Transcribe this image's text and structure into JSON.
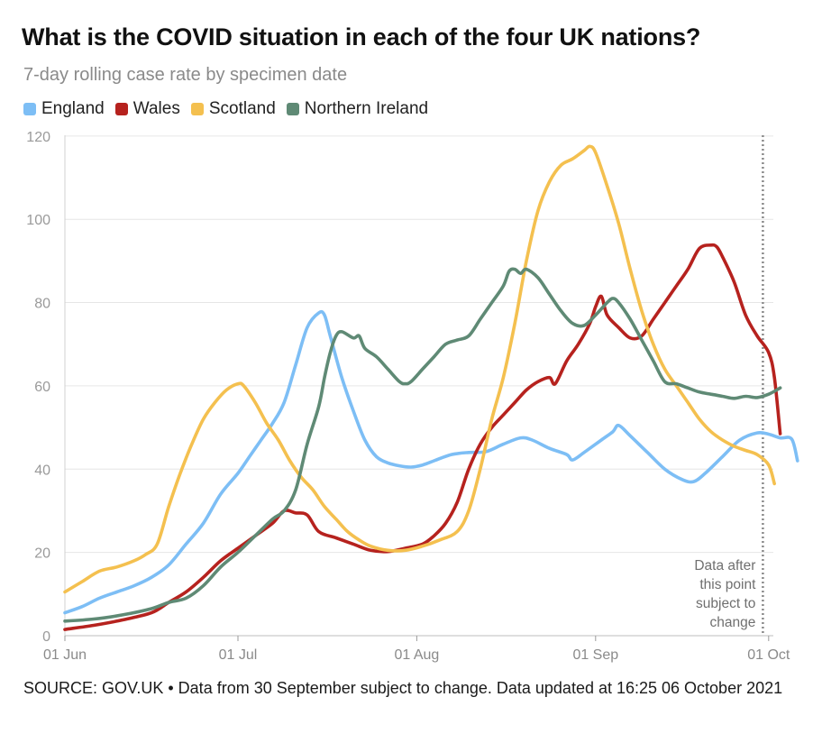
{
  "header": {
    "title": "What is the COVID situation in each of the four UK nations?",
    "subtitle": "7-day rolling case rate by specimen date"
  },
  "footer": {
    "source": "SOURCE: GOV.UK • Data from 30 September subject to change. Data updated at 16:25 06 October 2021"
  },
  "annotation": {
    "lines": [
      "Data after",
      "this point",
      "subject to",
      "change"
    ],
    "day": 121
  },
  "chart_data": {
    "type": "line",
    "title": "What is the COVID situation in each of the four UK nations?",
    "subtitle": "7-day rolling case rate by specimen date",
    "xlabel": "",
    "ylabel": "",
    "ylim": [
      0,
      120
    ],
    "xlim_days": [
      0,
      124
    ],
    "legend_position": "top-left",
    "grid": true,
    "y_ticks": [
      0,
      20,
      40,
      60,
      80,
      100,
      120
    ],
    "x_ticks": [
      {
        "label": "01 Jun",
        "day": 0
      },
      {
        "label": "01 Jul",
        "day": 30
      },
      {
        "label": "01 Aug",
        "day": 61
      },
      {
        "label": "01 Sep",
        "day": 92
      },
      {
        "label": "01 Oct",
        "day": 122
      }
    ],
    "series": [
      {
        "name": "England",
        "color": "#7dbef5",
        "points": [
          [
            0,
            5.5
          ],
          [
            3,
            7
          ],
          [
            6,
            9
          ],
          [
            9,
            10.5
          ],
          [
            12,
            12
          ],
          [
            15,
            14
          ],
          [
            18,
            17
          ],
          [
            21,
            22
          ],
          [
            24,
            27
          ],
          [
            27,
            34
          ],
          [
            30,
            39
          ],
          [
            32,
            43
          ],
          [
            34,
            47
          ],
          [
            36,
            51
          ],
          [
            38,
            56
          ],
          [
            40,
            65
          ],
          [
            42,
            74
          ],
          [
            44,
            77.5
          ],
          [
            45,
            77
          ],
          [
            46,
            72
          ],
          [
            48,
            62
          ],
          [
            50,
            54
          ],
          [
            52,
            47
          ],
          [
            54,
            43
          ],
          [
            56,
            41.5
          ],
          [
            58,
            40.8
          ],
          [
            60,
            40.5
          ],
          [
            62,
            41
          ],
          [
            64,
            42
          ],
          [
            67,
            43.5
          ],
          [
            70,
            44
          ],
          [
            73,
            44.2
          ],
          [
            76,
            46
          ],
          [
            79,
            47.5
          ],
          [
            81,
            47
          ],
          [
            84,
            45
          ],
          [
            87,
            43.5
          ],
          [
            88,
            42.2
          ],
          [
            90,
            44
          ],
          [
            93,
            47
          ],
          [
            95,
            49
          ],
          [
            96,
            50.5
          ],
          [
            98,
            48
          ],
          [
            101,
            44
          ],
          [
            104,
            40
          ],
          [
            107,
            37.5
          ],
          [
            109,
            37
          ],
          [
            111,
            39
          ],
          [
            114,
            43
          ],
          [
            117,
            47
          ],
          [
            120,
            48.7
          ],
          [
            122,
            48.4
          ],
          [
            124,
            47.5
          ],
          [
            126,
            47.2
          ],
          [
            127,
            42
          ]
        ]
      },
      {
        "name": "Wales",
        "color": "#b6221e",
        "points": [
          [
            0,
            1.5
          ],
          [
            5,
            2.5
          ],
          [
            10,
            3.8
          ],
          [
            15,
            5.5
          ],
          [
            18,
            8
          ],
          [
            21,
            10.5
          ],
          [
            24,
            14
          ],
          [
            27,
            18
          ],
          [
            30,
            21
          ],
          [
            33,
            24
          ],
          [
            36,
            27
          ],
          [
            38,
            30
          ],
          [
            40,
            29.5
          ],
          [
            42,
            29
          ],
          [
            44,
            25
          ],
          [
            47,
            23.5
          ],
          [
            50,
            22
          ],
          [
            53,
            20.5
          ],
          [
            56,
            20.2
          ],
          [
            59,
            21
          ],
          [
            62,
            22
          ],
          [
            64,
            24
          ],
          [
            66,
            27
          ],
          [
            68,
            32
          ],
          [
            70,
            40
          ],
          [
            72,
            46
          ],
          [
            74,
            50
          ],
          [
            76,
            53
          ],
          [
            78,
            56
          ],
          [
            80,
            59
          ],
          [
            82,
            61
          ],
          [
            84,
            62
          ],
          [
            85,
            60.5
          ],
          [
            87,
            66
          ],
          [
            89,
            70
          ],
          [
            91,
            75
          ],
          [
            92,
            79
          ],
          [
            93,
            81.5
          ],
          [
            94,
            77
          ],
          [
            96,
            74
          ],
          [
            98,
            71.5
          ],
          [
            100,
            72
          ],
          [
            102,
            76
          ],
          [
            104,
            80
          ],
          [
            106,
            84
          ],
          [
            108,
            88
          ],
          [
            110,
            93
          ],
          [
            112,
            93.8
          ],
          [
            113,
            93.4
          ],
          [
            114,
            91
          ],
          [
            116,
            85
          ],
          [
            118,
            77
          ],
          [
            120,
            72
          ],
          [
            122,
            68
          ],
          [
            123,
            62
          ],
          [
            124,
            48.5
          ]
        ]
      },
      {
        "name": "Scotland",
        "color": "#f4c04f",
        "points": [
          [
            0,
            10.5
          ],
          [
            3,
            13
          ],
          [
            6,
            15.5
          ],
          [
            9,
            16.5
          ],
          [
            12,
            18
          ],
          [
            14,
            19.5
          ],
          [
            16,
            22
          ],
          [
            18,
            31
          ],
          [
            20,
            39
          ],
          [
            22,
            46
          ],
          [
            24,
            52
          ],
          [
            26,
            56
          ],
          [
            28,
            59
          ],
          [
            30,
            60.5
          ],
          [
            31,
            60
          ],
          [
            33,
            56
          ],
          [
            35,
            51
          ],
          [
            37,
            47
          ],
          [
            39,
            42
          ],
          [
            41,
            38
          ],
          [
            43,
            35
          ],
          [
            45,
            31
          ],
          [
            47,
            28
          ],
          [
            49,
            25
          ],
          [
            51,
            23
          ],
          [
            53,
            21.5
          ],
          [
            56,
            20.5
          ],
          [
            59,
            20.5
          ],
          [
            62,
            21.5
          ],
          [
            65,
            23
          ],
          [
            68,
            25
          ],
          [
            70,
            30
          ],
          [
            72,
            40
          ],
          [
            74,
            52
          ],
          [
            76,
            62
          ],
          [
            78,
            75
          ],
          [
            80,
            90
          ],
          [
            82,
            102
          ],
          [
            84,
            109
          ],
          [
            86,
            113
          ],
          [
            88,
            114.5
          ],
          [
            90,
            116.5
          ],
          [
            91,
            117.5
          ],
          [
            92,
            116
          ],
          [
            94,
            108
          ],
          [
            96,
            99
          ],
          [
            98,
            88
          ],
          [
            100,
            78
          ],
          [
            102,
            70
          ],
          [
            104,
            64
          ],
          [
            106,
            60
          ],
          [
            108,
            56
          ],
          [
            110,
            52
          ],
          [
            112,
            49
          ],
          [
            114,
            47
          ],
          [
            116,
            45.5
          ],
          [
            118,
            44.5
          ],
          [
            120,
            43.5
          ],
          [
            122,
            41
          ],
          [
            123,
            36.5
          ]
        ]
      },
      {
        "name": "Northern Ireland",
        "color": "#5f8a75",
        "points": [
          [
            0,
            3.5
          ],
          [
            5,
            4
          ],
          [
            10,
            5
          ],
          [
            15,
            6.5
          ],
          [
            18,
            8
          ],
          [
            21,
            9
          ],
          [
            24,
            12
          ],
          [
            27,
            16.5
          ],
          [
            30,
            20
          ],
          [
            33,
            24
          ],
          [
            36,
            28
          ],
          [
            38,
            30
          ],
          [
            40,
            35
          ],
          [
            42,
            46
          ],
          [
            44,
            55
          ],
          [
            45,
            62
          ],
          [
            46,
            68
          ],
          [
            47,
            72
          ],
          [
            48,
            73
          ],
          [
            50,
            71.5
          ],
          [
            51,
            72
          ],
          [
            52,
            69
          ],
          [
            54,
            67
          ],
          [
            56,
            64
          ],
          [
            58,
            61
          ],
          [
            59,
            60.5
          ],
          [
            60,
            61
          ],
          [
            62,
            64
          ],
          [
            64,
            67
          ],
          [
            66,
            70
          ],
          [
            68,
            71
          ],
          [
            70,
            72
          ],
          [
            72,
            76
          ],
          [
            74,
            80
          ],
          [
            76,
            84
          ],
          [
            77,
            87.5
          ],
          [
            78,
            88
          ],
          [
            79,
            87
          ],
          [
            80,
            88
          ],
          [
            82,
            86
          ],
          [
            84,
            82
          ],
          [
            86,
            78
          ],
          [
            88,
            75
          ],
          [
            90,
            74.5
          ],
          [
            92,
            77
          ],
          [
            94,
            80
          ],
          [
            95,
            81
          ],
          [
            96,
            80
          ],
          [
            98,
            76
          ],
          [
            100,
            71
          ],
          [
            102,
            66
          ],
          [
            104,
            61
          ],
          [
            106,
            60.5
          ],
          [
            108,
            59.5
          ],
          [
            110,
            58.5
          ],
          [
            112,
            58
          ],
          [
            114,
            57.5
          ],
          [
            116,
            57
          ],
          [
            118,
            57.5
          ],
          [
            120,
            57.2
          ],
          [
            122,
            58
          ],
          [
            124,
            59.5
          ]
        ]
      }
    ]
  }
}
